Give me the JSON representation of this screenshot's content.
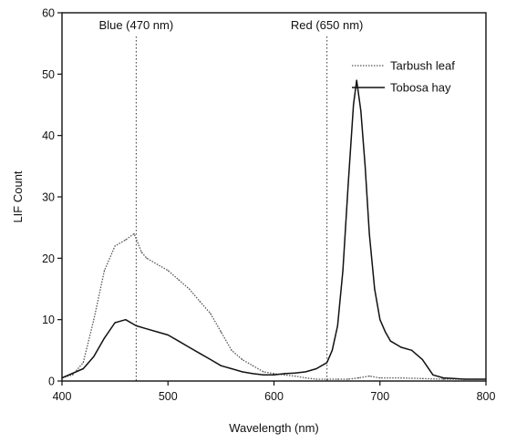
{
  "chart_data": {
    "type": "line",
    "title": "",
    "xlabel": "Wavelength (nm)",
    "ylabel": "LIF Count",
    "xlim": [
      400,
      800
    ],
    "ylim": [
      0,
      60
    ],
    "xticks": [
      400,
      500,
      600,
      700,
      800
    ],
    "yticks": [
      0,
      10,
      20,
      30,
      40,
      50,
      60
    ],
    "grid": false,
    "legend_position": "top-right",
    "annotations": [
      {
        "label": "Blue (470 nm)",
        "x": 470
      },
      {
        "label": "Red (650 nm)",
        "x": 650
      }
    ],
    "series": [
      {
        "name": "Tarbush leaf",
        "style": "dotted",
        "color": "#555555",
        "x": [
          400,
          410,
          420,
          430,
          440,
          450,
          460,
          468,
          475,
          480,
          490,
          500,
          510,
          520,
          530,
          540,
          550,
          560,
          570,
          580,
          590,
          600,
          610,
          620,
          630,
          640,
          650,
          660,
          670,
          680,
          690,
          700,
          720,
          740,
          760,
          780,
          800
        ],
        "y": [
          0.5,
          1,
          3,
          10,
          18,
          22,
          23,
          24,
          21,
          20,
          19,
          18,
          16.5,
          15,
          13,
          11,
          8,
          5,
          3.5,
          2.5,
          1.5,
          1.2,
          1,
          0.8,
          0.5,
          0.3,
          0.3,
          0.3,
          0.3,
          0.5,
          0.8,
          0.5,
          0.5,
          0.4,
          0.3,
          0.3,
          0.3
        ]
      },
      {
        "name": "Tobosa hay",
        "style": "solid",
        "color": "#111111",
        "x": [
          400,
          420,
          430,
          440,
          450,
          460,
          470,
          480,
          490,
          500,
          510,
          520,
          530,
          540,
          550,
          560,
          570,
          580,
          590,
          600,
          610,
          620,
          630,
          640,
          650,
          655,
          660,
          665,
          670,
          675,
          678,
          682,
          686,
          690,
          695,
          700,
          705,
          710,
          720,
          730,
          740,
          750,
          760,
          770,
          780,
          790,
          800
        ],
        "y": [
          0.5,
          2,
          4,
          7,
          9.5,
          10,
          9,
          8.5,
          8,
          7.5,
          6.5,
          5.5,
          4.5,
          3.5,
          2.5,
          2,
          1.5,
          1.2,
          1,
          1,
          1.2,
          1.3,
          1.5,
          2,
          3,
          5,
          9,
          18,
          32,
          45,
          49,
          44,
          35,
          24,
          15,
          10,
          8,
          6.5,
          5.5,
          5,
          3.5,
          1,
          0.5,
          0.4,
          0.3,
          0.3,
          0.3
        ]
      }
    ]
  }
}
